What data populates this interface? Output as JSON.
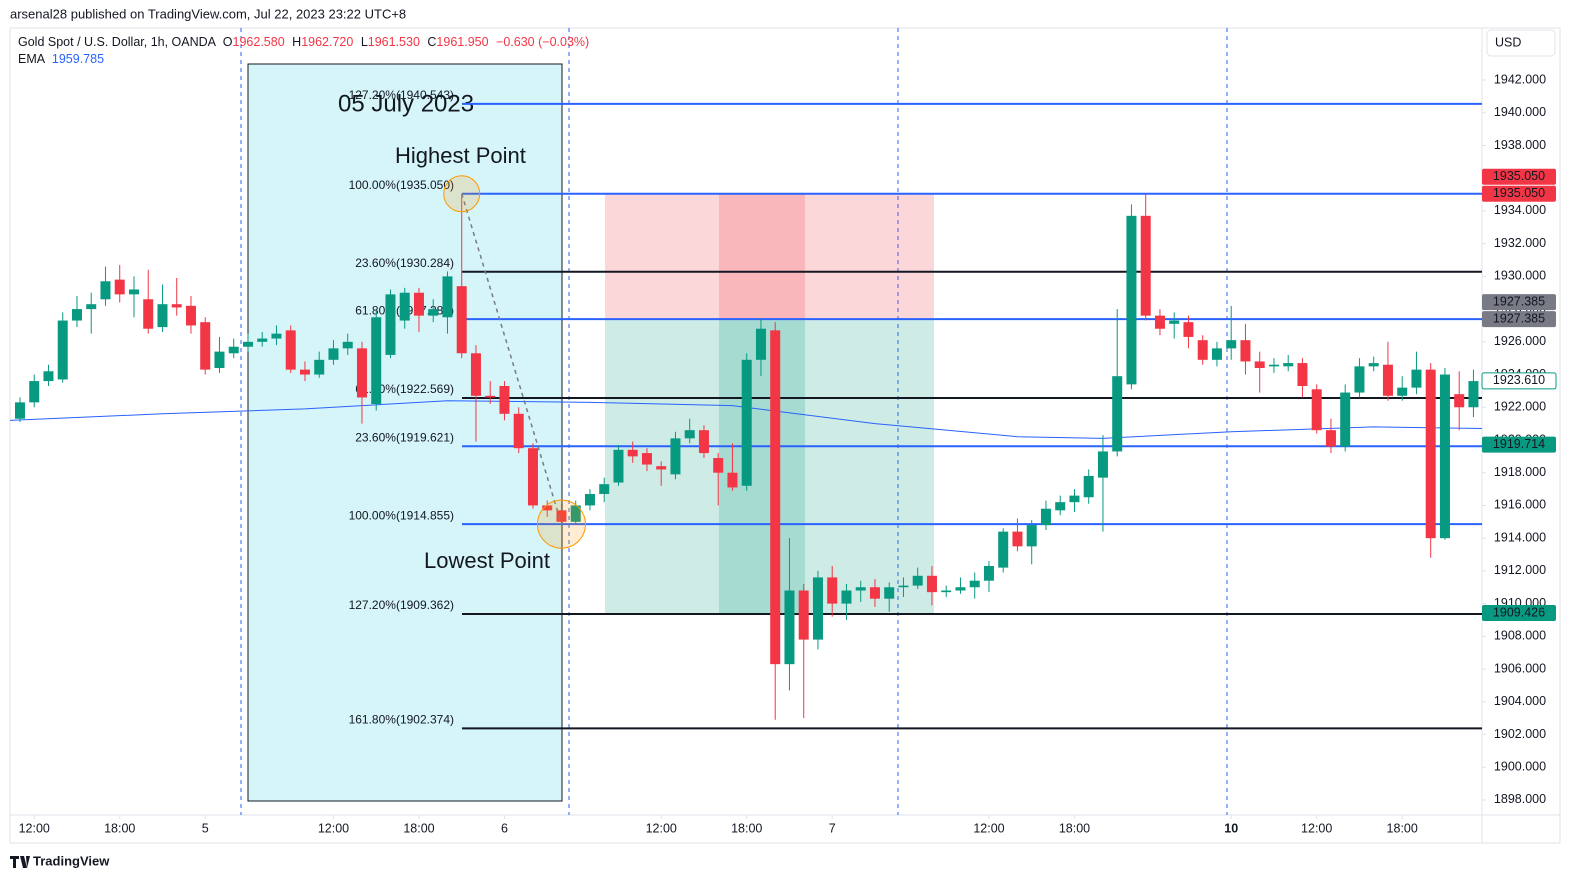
{
  "chart_data": {
    "type": "candlestick",
    "attribution": "arsenal28 published on TradingView.com, Jul 22, 2023 23:22 UTC+8",
    "symbol": "Gold Spot / U.S. Dollar, 1h, OANDA",
    "ohlc_legend": [
      {
        "key": "O",
        "value": "1962.580"
      },
      {
        "key": "H",
        "value": "1962.720"
      },
      {
        "key": "L",
        "value": "1961.530"
      },
      {
        "key": "C",
        "value": "1961.950"
      }
    ],
    "change": "−0.630 (−0.03%)",
    "indicator": {
      "name": "EMA",
      "value": "1959.785"
    },
    "currency": "USD",
    "brand": "TradingView",
    "annotations": {
      "date": "05 July 2023",
      "high": "Highest Point",
      "low": "Lowest Point"
    },
    "up_color": "#089981",
    "down_color": "#f23645",
    "open": [
      1921.3,
      1922.3,
      1923.6,
      1923.7,
      1927.3,
      1928.0,
      1928.6,
      1929.8,
      1928.9,
      1928.6,
      1926.9,
      1928.3,
      1928.2,
      1927.2,
      1924.4,
      1925.3,
      1925.7,
      1926.0,
      1926.2,
      1926.7,
      1924.3,
      1924.0,
      1924.9,
      1925.6,
      1925.6,
      1922.2,
      1925.2,
      1927.3,
      1929.0,
      1927.6,
      1927.5,
      1929.4,
      1925.3,
      1922.7,
      1923.3,
      1921.6,
      1919.5,
      1916.0,
      1915.7,
      1915.0,
      1916.0,
      1916.7,
      1917.4,
      1919.4,
      1919.2,
      1918.4,
      1917.9,
      1920.1,
      1920.6,
      1918.9,
      1918.0,
      1917.2,
      1924.9,
      1926.7,
      1906.3,
      1910.8,
      1907.8,
      1911.6,
      1910.0,
      1910.8,
      1911.0,
      1910.3,
      1911.0,
      1911.1,
      1911.7,
      1910.7,
      1910.8,
      1911.0,
      1911.4,
      1912.2,
      1914.4,
      1913.5,
      1914.8,
      1915.7,
      1916.2,
      1916.5,
      1917.7,
      1919.3,
      1923.4,
      1933.7,
      1927.6,
      1927.1,
      1927.2,
      1926.1,
      1924.9,
      1925.6,
      1926.1,
      1924.8,
      1924.5,
      1924.5,
      1924.7,
      1923.1,
      1920.6,
      1919.6,
      1922.9,
      1924.5,
      1924.6,
      1922.7,
      1923.2,
      1924.3,
      1914.0,
      1922.8,
      1922.0
    ],
    "high": [
      1922.6,
      1924.0,
      1924.6,
      1927.8,
      1928.8,
      1929.0,
      1930.6,
      1930.7,
      1930.0,
      1930.4,
      1929.5,
      1929.9,
      1928.8,
      1927.5,
      1926.3,
      1926.2,
      1926.5,
      1926.6,
      1927.0,
      1927.0,
      1924.8,
      1925.4,
      1926.1,
      1926.5,
      1926.0,
      1927.9,
      1929.2,
      1929.3,
      1929.3,
      1928.6,
      1930.3,
      1935.05,
      1925.8,
      1923.6,
      1923.6,
      1922.0,
      1919.8,
      1916.3,
      1916.1,
      1916.3,
      1917.0,
      1917.7,
      1919.7,
      1919.9,
      1919.5,
      1918.7,
      1920.5,
      1921.3,
      1920.9,
      1919.2,
      1919.8,
      1925.3,
      1927.4,
      1927.2,
      1914.0,
      1911.2,
      1912.0,
      1912.3,
      1911.2,
      1911.4,
      1911.5,
      1911.3,
      1911.6,
      1912.2,
      1912.3,
      1911.1,
      1911.6,
      1911.9,
      1912.6,
      1914.6,
      1915.2,
      1915.1,
      1916.3,
      1916.6,
      1917.0,
      1918.2,
      1920.3,
      1928.0,
      1934.4,
      1935.05,
      1928.0,
      1927.8,
      1927.6,
      1926.4,
      1926.0,
      1928.2,
      1927.1,
      1925.4,
      1925.0,
      1925.2,
      1925.0,
      1923.4,
      1921.3,
      1923.4,
      1925.0,
      1925.1,
      1926.0,
      1923.9,
      1925.4,
      1924.7,
      1924.4,
      1924.2,
      1924.3
    ],
    "low": [
      1921.1,
      1922.0,
      1923.3,
      1923.5,
      1926.9,
      1926.5,
      1928.2,
      1928.4,
      1927.5,
      1926.5,
      1926.6,
      1927.6,
      1926.5,
      1924.0,
      1924.1,
      1925.0,
      1925.4,
      1925.7,
      1925.8,
      1924.1,
      1923.6,
      1923.8,
      1924.6,
      1925.2,
      1921.0,
      1921.8,
      1925.0,
      1926.8,
      1926.6,
      1927.2,
      1926.5,
      1925.0,
      1919.9,
      1922.2,
      1921.2,
      1919.2,
      1915.8,
      1915.3,
      1914.855,
      1914.9,
      1915.7,
      1916.2,
      1917.2,
      1918.6,
      1918.1,
      1917.2,
      1917.6,
      1919.8,
      1918.9,
      1916.0,
      1916.9,
      1916.9,
      1923.9,
      1902.9,
      1904.7,
      1903.0,
      1907.2,
      1909.2,
      1909.0,
      1910.1,
      1909.8,
      1909.5,
      1910.4,
      1910.9,
      1909.9,
      1910.4,
      1910.6,
      1910.3,
      1910.7,
      1911.9,
      1913.2,
      1912.4,
      1914.5,
      1915.4,
      1915.6,
      1916.1,
      1914.4,
      1919.0,
      1923.1,
      1927.3,
      1926.4,
      1926.2,
      1925.6,
      1924.6,
      1924.5,
      1924.9,
      1924.0,
      1922.9,
      1924.1,
      1924.2,
      1922.6,
      1920.4,
      1919.2,
      1919.3,
      1922.6,
      1924.2,
      1922.4,
      1922.4,
      1922.8,
      1912.8,
      1913.9,
      1920.6,
      1921.4
    ],
    "close": [
      1922.3,
      1923.6,
      1924.2,
      1927.3,
      1928.0,
      1928.3,
      1929.7,
      1928.9,
      1929.2,
      1926.8,
      1928.3,
      1928.1,
      1927.0,
      1924.3,
      1925.4,
      1925.7,
      1926.0,
      1926.2,
      1926.5,
      1924.3,
      1924.0,
      1924.9,
      1925.6,
      1926.0,
      1922.6,
      1927.5,
      1928.9,
      1929.0,
      1927.6,
      1928.0,
      1930.0,
      1925.3,
      1922.7,
      1922.6,
      1921.6,
      1919.5,
      1916.0,
      1915.7,
      1915.0,
      1916.0,
      1916.7,
      1917.3,
      1919.4,
      1919.0,
      1918.5,
      1918.2,
      1920.1,
      1920.6,
      1919.2,
      1918.0,
      1917.1,
      1924.9,
      1926.8,
      1906.3,
      1910.8,
      1907.8,
      1911.6,
      1910.0,
      1910.8,
      1911.0,
      1910.3,
      1911.0,
      1911.1,
      1911.7,
      1910.7,
      1910.8,
      1911.0,
      1911.4,
      1912.3,
      1914.4,
      1913.5,
      1914.8,
      1915.8,
      1916.2,
      1916.6,
      1917.8,
      1919.3,
      1923.9,
      1933.7,
      1927.6,
      1926.8,
      1927.3,
      1926.3,
      1924.9,
      1925.6,
      1926.1,
      1924.8,
      1924.4,
      1924.6,
      1924.7,
      1923.3,
      1920.6,
      1919.6,
      1922.9,
      1924.5,
      1924.7,
      1922.7,
      1923.2,
      1924.3,
      1914.0,
      1924.0,
      1922.0,
      1923.6
    ],
    "ema": {
      "color": "#2962ff",
      "x": [
        -0.7,
        10,
        20,
        30,
        40,
        50,
        60,
        70,
        76,
        85,
        95,
        102.6
      ],
      "values": [
        1921.2,
        1921.6,
        1921.9,
        1922.4,
        1922.3,
        1922.1,
        1921.0,
        1920.2,
        1920.1,
        1920.5,
        1920.8,
        1920.7
      ]
    },
    "fib_blue": {
      "color": "#2962ff",
      "levels": [
        {
          "label": "127.20%(1940.543)",
          "value": 1940.543
        },
        {
          "label": "100.00%(1935.050)",
          "value": 1935.05
        },
        {
          "label": "61.80%(1927.386)",
          "value": 1927.386
        },
        {
          "label": "23.60%(1919.621)",
          "value": 1919.621
        },
        {
          "label": "100.00%(1914.855)",
          "value": 1914.855
        }
      ]
    },
    "fib_black": {
      "color": "#131722",
      "levels": [
        {
          "label": "23.60%(1930.284)",
          "value": 1930.284
        },
        {
          "label": "61.80%(1922.569)",
          "value": 1922.569
        },
        {
          "label": "127.20%(1909.362)",
          "value": 1909.362
        },
        {
          "label": "161.80%(1902.374)",
          "value": 1902.374
        }
      ]
    },
    "price_tags": [
      {
        "value": 1935.05,
        "label": "1935.050",
        "color": "#f23645"
      },
      {
        "value": 1935.05,
        "label": "1935.050",
        "color": "#f23645"
      },
      {
        "value": 1927.385,
        "label": "1927.385",
        "color": "#787b86"
      },
      {
        "value": 1927.385,
        "label": "1927.385",
        "color": "#787b86"
      },
      {
        "value": 1923.61,
        "label": "1923.610",
        "color": "#ffffff"
      },
      {
        "value": 1919.714,
        "label": "1919.714",
        "color": "#089981"
      },
      {
        "value": 1909.426,
        "label": "1909.426",
        "color": "#089981"
      }
    ],
    "xlim": [
      -0.7,
      102.6
    ],
    "xticks": [
      {
        "value": 1,
        "label": "12:00"
      },
      {
        "value": 7,
        "label": "18:00"
      },
      {
        "value": 13,
        "label": "5"
      },
      {
        "value": 22,
        "label": "12:00"
      },
      {
        "value": 28,
        "label": "18:00"
      },
      {
        "value": 34,
        "label": "6"
      },
      {
        "value": 45,
        "label": "12:00"
      },
      {
        "value": 51,
        "label": "18:00"
      },
      {
        "value": 57,
        "label": "7"
      },
      {
        "value": 68,
        "label": "12:00"
      },
      {
        "value": 74,
        "label": "18:00"
      },
      {
        "value": 85,
        "label": "10"
      },
      {
        "value": 91,
        "label": "12:00"
      },
      {
        "value": 97,
        "label": "18:00"
      }
    ],
    "ylim": [
      1897.08,
      1945.18
    ],
    "yticks": [
      {
        "value": 1898,
        "label": "1898.000"
      },
      {
        "value": 1900,
        "label": "1900.000"
      },
      {
        "value": 1902,
        "label": "1902.000"
      },
      {
        "value": 1904,
        "label": "1904.000"
      },
      {
        "value": 1906,
        "label": "1906.000"
      },
      {
        "value": 1908,
        "label": "1908.000"
      },
      {
        "value": 1910,
        "label": "1910.000"
      },
      {
        "value": 1912,
        "label": "1912.000"
      },
      {
        "value": 1914,
        "label": "1914.000"
      },
      {
        "value": 1916,
        "label": "1916.000"
      },
      {
        "value": 1918,
        "label": "1918.000"
      },
      {
        "value": 1920,
        "label": "1920.000"
      },
      {
        "value": 1922,
        "label": "1922.000"
      },
      {
        "value": 1924,
        "label": "1924.000"
      },
      {
        "value": 1926,
        "label": "1926.000"
      },
      {
        "value": 1928,
        "label": "1928.000"
      },
      {
        "value": 1930,
        "label": "1930.000"
      },
      {
        "value": 1932,
        "label": "1932.000"
      },
      {
        "value": 1934,
        "label": "1934.000"
      },
      {
        "value": 1936,
        "label": "1936.000"
      },
      {
        "value": 1938,
        "label": "1938.000"
      },
      {
        "value": 1940,
        "label": "1940.000"
      },
      {
        "value": 1942,
        "label": "1942.000"
      }
    ]
  }
}
